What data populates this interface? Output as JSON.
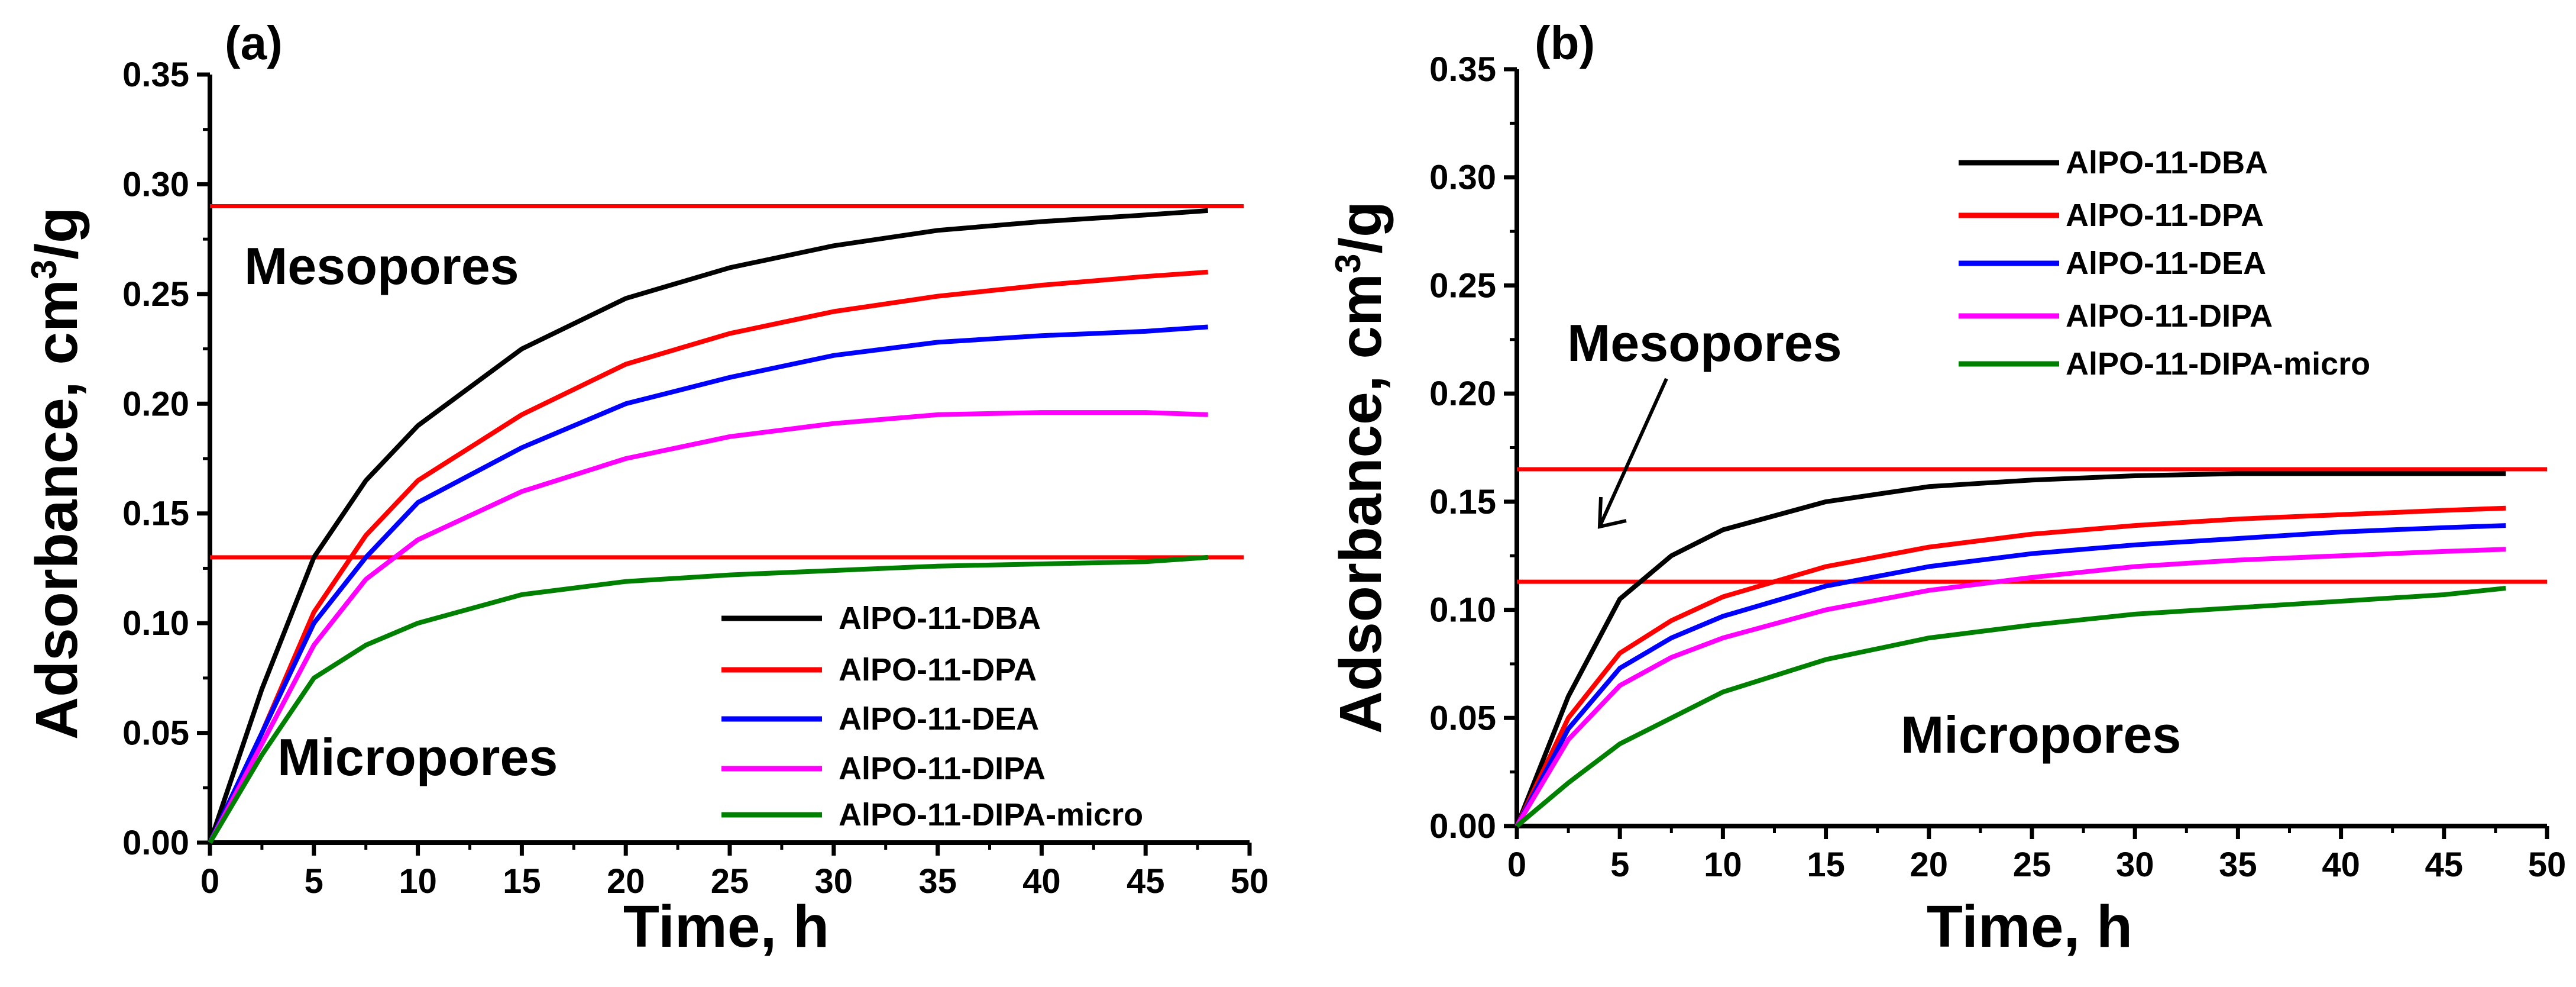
{
  "chart_data": [
    {
      "type": "line",
      "panel_label": "(a)",
      "xlabel": "Time, h",
      "ylabel": "Adsorbance, cm",
      "ylabel_sup": "3",
      "ylabel_suffix": "/g",
      "xlim": [
        0,
        50
      ],
      "ylim": [
        0,
        0.35
      ],
      "xticks": [
        "0",
        "5",
        "10",
        "15",
        "20",
        "25",
        "30",
        "35",
        "40",
        "45",
        "50"
      ],
      "yticks": [
        "0.00",
        "0.05",
        "0.10",
        "0.15",
        "0.20",
        "0.25",
        "0.30",
        "0.35"
      ],
      "legend_position": "bottom-right",
      "annotations": [
        {
          "text": "Mesopores"
        },
        {
          "text": "Micropores"
        }
      ],
      "reference_lines": [
        {
          "y": 0.29,
          "color": "#ff0000"
        },
        {
          "y": 0.13,
          "color": "#ff0000"
        }
      ],
      "x": [
        0,
        2.5,
        5,
        7.5,
        10,
        15,
        20,
        25,
        30,
        35,
        40,
        45,
        48
      ],
      "series": [
        {
          "name": "AlPO-11-DBA",
          "color": "#000000",
          "values": [
            0,
            0.07,
            0.13,
            0.165,
            0.19,
            0.225,
            0.248,
            0.262,
            0.272,
            0.279,
            0.283,
            0.286,
            0.288
          ]
        },
        {
          "name": "AlPO-11-DPA",
          "color": "#ff0000",
          "values": [
            0,
            0.05,
            0.105,
            0.14,
            0.165,
            0.195,
            0.218,
            0.232,
            0.242,
            0.249,
            0.254,
            0.258,
            0.26
          ]
        },
        {
          "name": "AlPO-11-DEA",
          "color": "#0000ff",
          "values": [
            0,
            0.05,
            0.1,
            0.13,
            0.155,
            0.18,
            0.2,
            0.212,
            0.222,
            0.228,
            0.231,
            0.233,
            0.235
          ]
        },
        {
          "name": "AlPO-11-DIPA",
          "color": "#ff00ff",
          "values": [
            0,
            0.045,
            0.09,
            0.12,
            0.138,
            0.16,
            0.175,
            0.185,
            0.191,
            0.195,
            0.196,
            0.196,
            0.195
          ]
        },
        {
          "name": "AlPO-11-DIPA-micro",
          "color": "#008000",
          "values": [
            0,
            0.04,
            0.075,
            0.09,
            0.1,
            0.113,
            0.119,
            0.122,
            0.124,
            0.126,
            0.127,
            0.128,
            0.13
          ]
        }
      ]
    },
    {
      "type": "line",
      "panel_label": "(b)",
      "xlabel": "Time, h",
      "ylabel": "Adsorbance, cm",
      "ylabel_sup": "3",
      "ylabel_suffix": "/g",
      "xlim": [
        0,
        50
      ],
      "ylim": [
        0,
        0.35
      ],
      "xticks": [
        "0",
        "5",
        "10",
        "15",
        "20",
        "25",
        "30",
        "35",
        "40",
        "45",
        "50"
      ],
      "yticks": [
        "0.00",
        "0.05",
        "0.10",
        "0.15",
        "0.20",
        "0.25",
        "0.30",
        "0.35"
      ],
      "legend_position": "top-right",
      "annotations": [
        {
          "text": "Mesopores"
        },
        {
          "text": "Micropores"
        }
      ],
      "reference_lines": [
        {
          "y": 0.165,
          "color": "#ff0000"
        },
        {
          "y": 0.113,
          "color": "#ff0000"
        }
      ],
      "x": [
        0,
        2.5,
        5,
        7.5,
        10,
        15,
        20,
        25,
        30,
        35,
        40,
        45,
        48
      ],
      "series": [
        {
          "name": "AlPO-11-DBA",
          "color": "#000000",
          "values": [
            0,
            0.06,
            0.105,
            0.125,
            0.137,
            0.15,
            0.157,
            0.16,
            0.162,
            0.163,
            0.163,
            0.163,
            0.163
          ]
        },
        {
          "name": "AlPO-11-DPA",
          "color": "#ff0000",
          "values": [
            0,
            0.05,
            0.08,
            0.095,
            0.106,
            0.12,
            0.129,
            0.135,
            0.139,
            0.142,
            0.144,
            0.146,
            0.147
          ]
        },
        {
          "name": "AlPO-11-DEA",
          "color": "#0000ff",
          "values": [
            0,
            0.045,
            0.073,
            0.087,
            0.097,
            0.111,
            0.12,
            0.126,
            0.13,
            0.133,
            0.136,
            0.138,
            0.139
          ]
        },
        {
          "name": "AlPO-11-DIPA",
          "color": "#ff00ff",
          "values": [
            0,
            0.04,
            0.065,
            0.078,
            0.087,
            0.1,
            0.109,
            0.115,
            0.12,
            0.123,
            0.125,
            0.127,
            0.128
          ]
        },
        {
          "name": "AlPO-11-DIPA-micro",
          "color": "#008000",
          "values": [
            0,
            0.02,
            0.038,
            0.05,
            0.062,
            0.077,
            0.087,
            0.093,
            0.098,
            0.101,
            0.104,
            0.107,
            0.11
          ]
        }
      ]
    }
  ]
}
